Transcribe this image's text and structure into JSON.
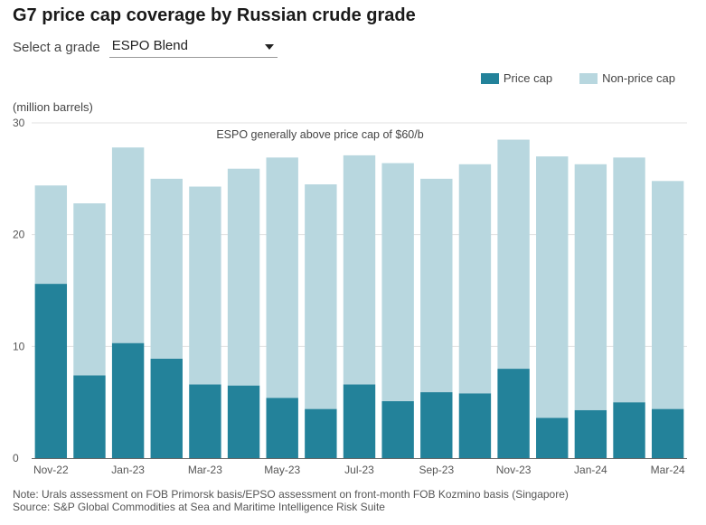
{
  "title": "G7 price cap coverage by Russian crude grade",
  "selector": {
    "label": "Select a grade",
    "value": "ESPO Blend"
  },
  "footnotes": {
    "note": "Note: Urals assessment on FOB Primorsk basis/EPSO assessment on front-month FOB Kozmino basis (Singapore)",
    "source": "Source: S&P Global Commodities at Sea and Maritime Intelligence Risk Suite"
  },
  "chart_data": {
    "type": "bar",
    "stacked": true,
    "unit_label": "(million barrels)",
    "annotation": "ESPO generally above price cap of $60/b",
    "categories": [
      "Nov-22",
      "Dec-22",
      "Jan-23",
      "Feb-23",
      "Mar-23",
      "Apr-23",
      "May-23",
      "Jun-23",
      "Jul-23",
      "Aug-23",
      "Sep-23",
      "Oct-23",
      "Nov-23",
      "Dec-23",
      "Jan-24",
      "Feb-24",
      "Mar-24"
    ],
    "x_tick_labels": [
      "Nov-22",
      "",
      "Jan-23",
      "",
      "Mar-23",
      "",
      "May-23",
      "",
      "Jul-23",
      "",
      "Sep-23",
      "",
      "Nov-23",
      "",
      "Jan-24",
      "",
      "Mar-24"
    ],
    "series": [
      {
        "name": "Price cap",
        "color": "#23829a",
        "values": [
          15.6,
          7.4,
          10.3,
          8.9,
          6.6,
          6.5,
          5.4,
          4.4,
          6.6,
          5.1,
          5.9,
          5.8,
          8.0,
          3.6,
          4.3,
          5.0,
          4.4
        ]
      },
      {
        "name": "Non-price cap",
        "color": "#b8d7df",
        "values": [
          8.8,
          15.4,
          17.5,
          16.1,
          17.7,
          19.4,
          21.5,
          20.1,
          20.5,
          21.3,
          19.1,
          20.5,
          20.5,
          23.4,
          22.0,
          21.9,
          20.4
        ]
      }
    ],
    "ylim": [
      0,
      30
    ],
    "y_ticks": [
      0,
      10,
      20,
      30
    ],
    "legend_position": "top-right",
    "grid": "horizontal"
  }
}
